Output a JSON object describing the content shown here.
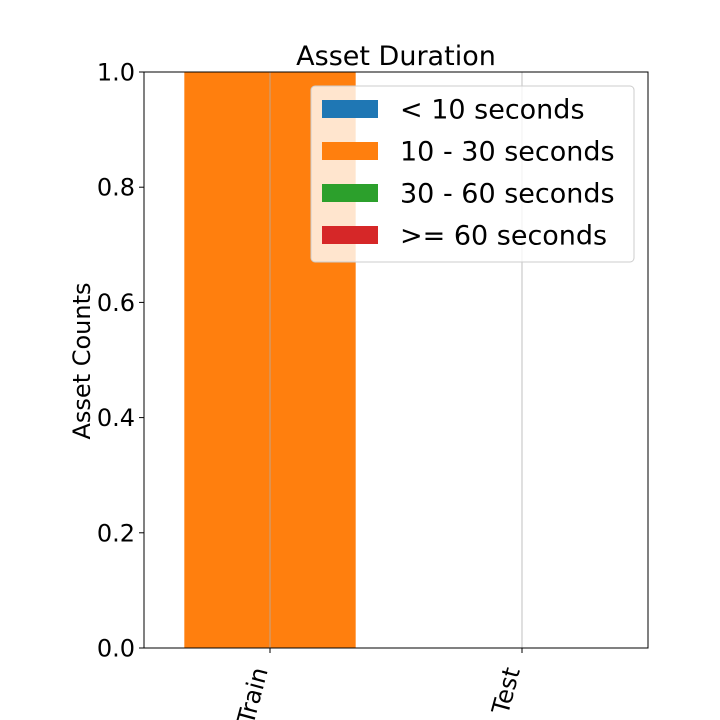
{
  "chart_data": {
    "type": "bar",
    "title": "Asset Duration",
    "xlabel": "",
    "ylabel": "Asset Counts",
    "categories": [
      "Train",
      "Test"
    ],
    "ylim": [
      0,
      1.0
    ],
    "yticks": [
      "0.0",
      "0.2",
      "0.4",
      "0.6",
      "0.8",
      "1.0"
    ],
    "stacked": true,
    "series": [
      {
        "name": "< 10 seconds",
        "color": "#1f77b4",
        "values": [
          0,
          0
        ]
      },
      {
        "name": "10 - 30 seconds",
        "color": "#ff7f0e",
        "values": [
          1.0,
          0
        ]
      },
      {
        "name": "30 - 60 seconds",
        "color": "#2ca02c",
        "values": [
          0,
          0
        ]
      },
      {
        "name": ">= 60 seconds",
        "color": "#d62728",
        "values": [
          0,
          0
        ]
      }
    ],
    "grid": "x",
    "legend": "top-right"
  }
}
